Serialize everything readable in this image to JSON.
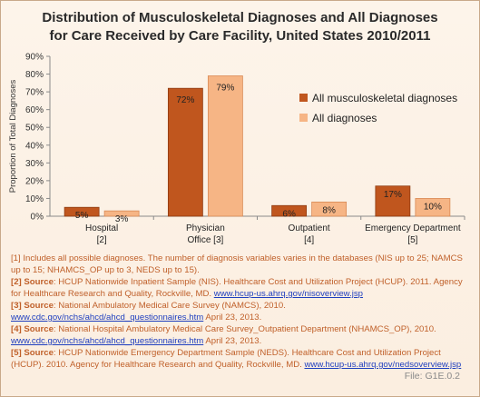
{
  "chart_data": {
    "type": "bar",
    "title_line1": "Distribution of Musculoskeletal Diagnoses and All Diagnoses",
    "title_line2": "for Care Received by Care Facility, United States 2010/2011",
    "ylabel": "Proportion of Total Diagnoses",
    "xlabel": "",
    "ylim": [
      0,
      90
    ],
    "yticks": [
      "0%",
      "10%",
      "20%",
      "30%",
      "40%",
      "50%",
      "60%",
      "70%",
      "80%",
      "90%"
    ],
    "grid": false,
    "legend_position": "right",
    "categories": [
      {
        "line1": "Hospital",
        "line2": "[2]"
      },
      {
        "line1": "Physician",
        "line2": "Office [3]"
      },
      {
        "line1": "Outpatient",
        "line2": "[4]"
      },
      {
        "line1": "Emergency Department",
        "line2": "[5]"
      }
    ],
    "series": [
      {
        "name": "All musculoskeletal diagnoses",
        "color": "#c0561e",
        "values": [
          5,
          72,
          6,
          17
        ],
        "labels": [
          "5%",
          "72%",
          "6%",
          "17%"
        ]
      },
      {
        "name": "All diagnoses",
        "color": "#f6b585",
        "values": [
          3,
          79,
          8,
          10
        ],
        "labels": [
          "3%",
          "79%",
          "8%",
          "10%"
        ]
      }
    ]
  },
  "notes": {
    "n1": "[1] Includes all possible diagnoses. The number of diagnosis variables varies in the databases (NIS up to 25; NAMCS up to 15; NHAMCS_OP up to 3, NEDS up to 15).",
    "n2_label": "[2] Source",
    "n2_text": ": HCUP Nationwide Inpatient Sample (NIS). Healthcare Cost and Utilization Project (HCUP). 2011. Agency for Healthcare Research and Quality, Rockville, MD. ",
    "n2_link": "www.hcup-us.ahrq.gov/nisoverview.jsp",
    "n3_label": "[3] Source",
    "n3_text": ": National Ambulatory Medical Care Survey (NAMCS), 2010. ",
    "n3_link": "www.cdc.gov/nchs/ahcd/ahcd_questionnaires.htm",
    "n3_tail": " April 23, 2013.",
    "n4_label": "[4] Source",
    "n4_text": ": National Hospital Ambulatory Medical Care Survey_Outpatient Department (NHAMCS_OP), 2010. ",
    "n4_link": "www.cdc.gov/nchs/ahcd/ahcd_questionnaires.htm",
    "n4_tail": " April 23, 2013.",
    "n5_label": "[5] Source",
    "n5_text": ": HCUP Nationwide Emergency Department Sample (NEDS). Healthcare Cost and Utilization Project (HCUP). 2010. Agency for Healthcare Research and Quality, Rockville, MD. ",
    "n5_link": "www.hcup-us.ahrq.gov/nedsoverview.jsp"
  },
  "file_id": "File: G1E.0.2"
}
